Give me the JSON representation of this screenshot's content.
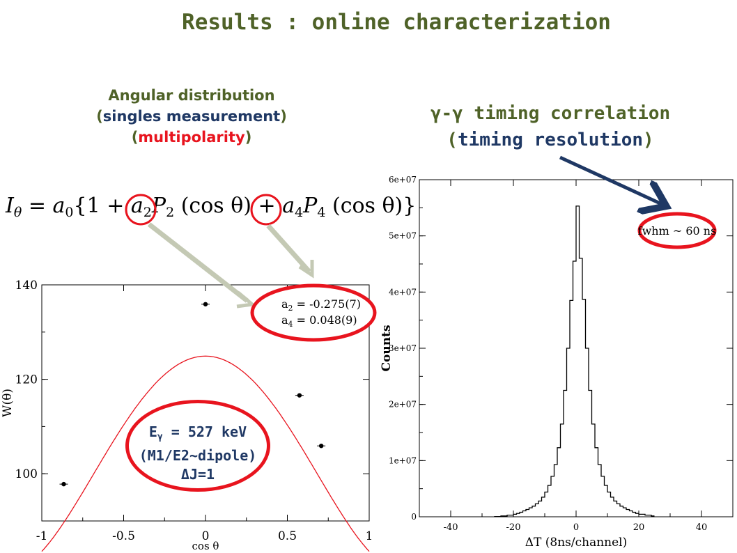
{
  "slide": {
    "title": "Results : online characterization",
    "left_heading": {
      "line1": "Angular distribution",
      "line2_text": "singles measurement",
      "line3_text": "multipolarity"
    },
    "right_heading": {
      "line1": "γ-γ timing correlation",
      "line2_text": "timing resolution"
    },
    "formula": {
      "lhs": "I",
      "lhs_sub": "θ",
      "eq_part1": " = a",
      "a0_sub": "0",
      "brace_open": "{1 + ",
      "a2_sym": "a",
      "a2_sub": "2",
      "p2_sym": "P",
      "p2_sub": "2",
      "p2_arg": " (cos θ) + ",
      "a4_sym": "a",
      "a4_sub": "4",
      "p4_sym": "P",
      "p4_sub": "4",
      "p4_arg": " (cos θ)}"
    },
    "fit_box": {
      "a2_label": "a",
      "a2_sub": "2",
      "a2_value": " = -0.275(7)",
      "a4_label": "a",
      "a4_sub": "4",
      "a4_value": " =  0.048(9)"
    },
    "energy_oval": {
      "line1_prefix": "E",
      "line1_sub": "γ",
      "line1_suffix": " = 527 keV",
      "line2": "(M1/E2~dipole)",
      "line3": "ΔJ=1"
    },
    "fwhm_label": "fwhm ~ 60 ns",
    "colors": {
      "title_green": "#4f6228",
      "navy": "#1f3864",
      "red": "#e8141e",
      "arrow_gray": "#c4c9b4"
    }
  },
  "chart_data": [
    {
      "type": "scatter",
      "xlabel": "cos θ",
      "ylabel": "W(θ)",
      "xlim": [
        -1,
        1
      ],
      "ylim": [
        90,
        140
      ],
      "xticks": [
        -1,
        -0.5,
        0,
        0.5,
        1
      ],
      "xtick_labels": [
        "-1",
        "-0.5",
        "0",
        "0.5",
        "1"
      ],
      "yticks": [
        100,
        120,
        140
      ],
      "ytick_labels": [
        "100",
        "120",
        "140"
      ],
      "points": [
        {
          "x": -0.866,
          "y": 97.8
        },
        {
          "x": 0.0,
          "y": 135.9
        },
        {
          "x": 0.574,
          "y": 116.6
        },
        {
          "x": 0.707,
          "y": 105.9
        }
      ],
      "fit": {
        "a0": 108.1,
        "a2": -0.275,
        "a4": 0.048,
        "color": "#e8141e"
      }
    },
    {
      "type": "line",
      "xlabel": "ΔT (8ns/channel)",
      "ylabel": "Counts",
      "xlim": [
        -50,
        50
      ],
      "ylim": [
        0,
        60000000
      ],
      "xticks": [
        -40,
        -20,
        0,
        20,
        40
      ],
      "xtick_labels": [
        "-40",
        "-20",
        "0",
        "20",
        "40"
      ],
      "yticks": [
        0,
        10000000,
        20000000,
        30000000,
        40000000,
        50000000,
        60000000
      ],
      "ytick_labels": [
        "0",
        "1e+07",
        "2e+07",
        "3e+07",
        "4e+07",
        "5e+07",
        "6e+07"
      ],
      "step": true,
      "x": [
        -26,
        -24,
        -22,
        -20,
        -19,
        -18,
        -17,
        -16,
        -15,
        -14,
        -13,
        -12,
        -11,
        -10,
        -9,
        -8,
        -7,
        -6,
        -5,
        -4,
        -3,
        -2,
        -1,
        0,
        1,
        2,
        3,
        4,
        5,
        6,
        7,
        8,
        9,
        10,
        11,
        12,
        13,
        14,
        15,
        16,
        17,
        18,
        19,
        20,
        22,
        24
      ],
      "y": [
        50000,
        150000,
        300000,
        450000,
        600000,
        800000,
        1050000,
        1300000,
        1600000,
        1900000,
        2300000,
        2800000,
        3500000,
        4400000,
        5600000,
        7200000,
        9300000,
        12300000,
        16500000,
        22500000,
        30000000,
        38500000,
        45500000,
        55300000,
        46000000,
        38700000,
        30000000,
        22500000,
        16500000,
        12300000,
        9300000,
        7200000,
        5600000,
        4400000,
        3500000,
        2800000,
        2300000,
        1900000,
        1600000,
        1300000,
        1050000,
        800000,
        600000,
        450000,
        300000,
        150000
      ]
    }
  ]
}
